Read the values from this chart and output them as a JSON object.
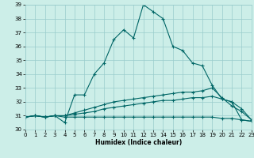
{
  "xlabel": "Humidex (Indice chaleur)",
  "xlim": [
    0,
    23
  ],
  "ylim": [
    30,
    39
  ],
  "yticks": [
    30,
    31,
    32,
    33,
    34,
    35,
    36,
    37,
    38,
    39
  ],
  "xticks": [
    0,
    1,
    2,
    3,
    4,
    5,
    6,
    7,
    8,
    9,
    10,
    11,
    12,
    13,
    14,
    15,
    16,
    17,
    18,
    19,
    20,
    21,
    22,
    23
  ],
  "background_color": "#cceee8",
  "grid_color": "#99cccc",
  "line_color": "#006666",
  "lines": [
    [
      30.9,
      31.0,
      30.9,
      31.0,
      30.5,
      32.5,
      32.5,
      34.0,
      34.8,
      36.5,
      37.2,
      36.6,
      39.0,
      38.5,
      38.0,
      36.0,
      35.7,
      34.8,
      34.6,
      33.2,
      32.2,
      32.0,
      30.7,
      30.6
    ],
    [
      30.9,
      31.0,
      30.9,
      31.0,
      31.0,
      31.2,
      31.4,
      31.6,
      31.8,
      32.0,
      32.1,
      32.2,
      32.3,
      32.4,
      32.5,
      32.6,
      32.7,
      32.7,
      32.8,
      33.0,
      32.3,
      31.7,
      31.3,
      30.7
    ],
    [
      30.9,
      31.0,
      30.9,
      31.0,
      31.0,
      31.1,
      31.2,
      31.3,
      31.5,
      31.6,
      31.7,
      31.8,
      31.9,
      32.0,
      32.1,
      32.1,
      32.2,
      32.3,
      32.3,
      32.4,
      32.2,
      32.0,
      31.5,
      30.7
    ],
    [
      30.9,
      31.0,
      30.9,
      31.0,
      30.9,
      30.9,
      30.9,
      30.9,
      30.9,
      30.9,
      30.9,
      30.9,
      30.9,
      30.9,
      30.9,
      30.9,
      30.9,
      30.9,
      30.9,
      30.9,
      30.8,
      30.8,
      30.7,
      30.6
    ]
  ]
}
